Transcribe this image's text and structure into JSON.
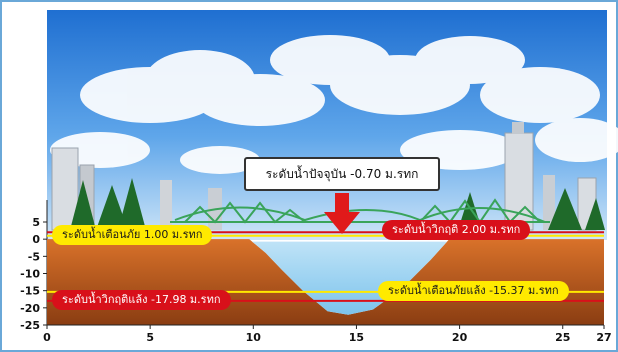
{
  "current_level": {
    "label": "ระดับน้ำปัจจุบัน -0.70 ม.รทก"
  },
  "levels": {
    "flood_warning": {
      "label": "ระดับน้ำเตือนภัย 1.00 ม.รทก",
      "value": 1.0,
      "color": "#ffea00"
    },
    "flood_critical": {
      "label": "ระดับน้ำวิกฤติ 2.00 ม.รทก",
      "value": 2.0,
      "color": "#d8101a"
    },
    "drought_warning": {
      "label": "ระดับน้ำเตือนภัยแล้ง -15.37 ม.รทก",
      "value": -15.37,
      "color": "#ffea00"
    },
    "drought_critical": {
      "label": "ระดับน้ำวิกฤติแล้ง -17.98 ม.รทก",
      "value": -17.98,
      "color": "#d8101a"
    }
  },
  "chart_data": {
    "type": "area",
    "x_ticks": [
      0,
      5,
      10,
      15,
      20,
      25,
      27
    ],
    "y_ticks": [
      5,
      0,
      -5,
      -10,
      -15,
      -20,
      -25
    ],
    "xlim": [
      0,
      27
    ],
    "ylim": [
      -25,
      5
    ],
    "current_water_level": -0.7,
    "cross_section": {
      "x": [
        0,
        9.8,
        10.6,
        11.4,
        12.4,
        13.6,
        14.6,
        15.8,
        16.6,
        17.6,
        18.6,
        19.5,
        27
      ],
      "y": [
        0,
        0,
        -4,
        -9,
        -15,
        -21,
        -22,
        -20.5,
        -17,
        -12,
        -6,
        0,
        0
      ]
    }
  }
}
